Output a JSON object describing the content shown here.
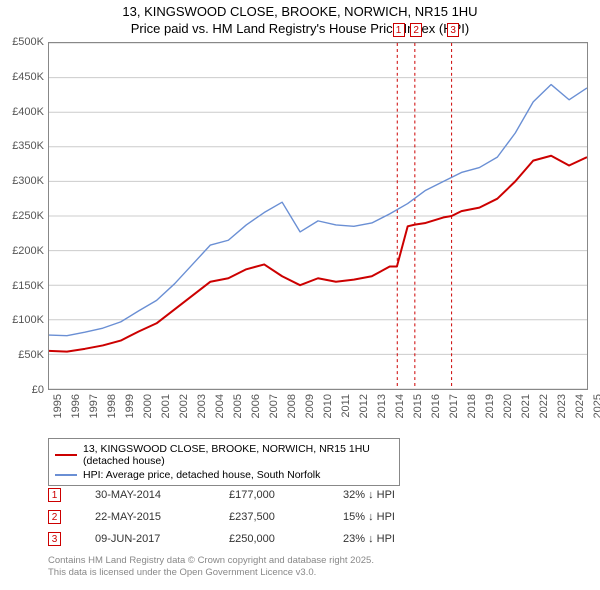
{
  "title_line1": "13, KINGSWOOD CLOSE, BROOKE, NORWICH, NR15 1HU",
  "title_line2": "Price paid vs. HM Land Registry's House Price Index (HPI)",
  "chart": {
    "type": "line",
    "ylim": [
      0,
      500000
    ],
    "ytick_step": 50000,
    "y_ticks": [
      "£0",
      "£50K",
      "£100K",
      "£150K",
      "£200K",
      "£250K",
      "£300K",
      "£350K",
      "£400K",
      "£450K",
      "£500K"
    ],
    "x_years": [
      1995,
      1996,
      1997,
      1998,
      1999,
      2000,
      2001,
      2002,
      2003,
      2004,
      2005,
      2006,
      2007,
      2008,
      2009,
      2010,
      2011,
      2012,
      2013,
      2014,
      2015,
      2016,
      2017,
      2018,
      2019,
      2020,
      2021,
      2022,
      2023,
      2024,
      2025
    ],
    "grid_color": "#cccccc",
    "background_color": "#ffffff",
    "series": [
      {
        "name": "price_paid",
        "label": "13, KINGSWOOD CLOSE, BROOKE, NORWICH, NR15 1HU (detached house)",
        "color": "#cc0000",
        "line_width": 2,
        "data": [
          [
            1995,
            55000
          ],
          [
            1996,
            54000
          ],
          [
            1997,
            58000
          ],
          [
            1998,
            63000
          ],
          [
            1999,
            70000
          ],
          [
            2000,
            83000
          ],
          [
            2001,
            95000
          ],
          [
            2002,
            115000
          ],
          [
            2003,
            135000
          ],
          [
            2004,
            155000
          ],
          [
            2005,
            160000
          ],
          [
            2006,
            173000
          ],
          [
            2007,
            180000
          ],
          [
            2008,
            163000
          ],
          [
            2009,
            150000
          ],
          [
            2010,
            160000
          ],
          [
            2011,
            155000
          ],
          [
            2012,
            158000
          ],
          [
            2013,
            163000
          ],
          [
            2014,
            177000
          ],
          [
            2014.4,
            177000
          ],
          [
            2015,
            235000
          ],
          [
            2015.4,
            237500
          ],
          [
            2016,
            240000
          ],
          [
            2017,
            248000
          ],
          [
            2017.45,
            250000
          ],
          [
            2018,
            257000
          ],
          [
            2019,
            262000
          ],
          [
            2020,
            275000
          ],
          [
            2021,
            300000
          ],
          [
            2022,
            330000
          ],
          [
            2023,
            337000
          ],
          [
            2024,
            323000
          ],
          [
            2025,
            335000
          ]
        ]
      },
      {
        "name": "hpi",
        "label": "HPI: Average price, detached house, South Norfolk",
        "color": "#6a8fd4",
        "line_width": 1.4,
        "data": [
          [
            1995,
            78000
          ],
          [
            1996,
            77000
          ],
          [
            1997,
            82000
          ],
          [
            1998,
            88000
          ],
          [
            1999,
            97000
          ],
          [
            2000,
            113000
          ],
          [
            2001,
            128000
          ],
          [
            2002,
            152000
          ],
          [
            2003,
            180000
          ],
          [
            2004,
            208000
          ],
          [
            2005,
            215000
          ],
          [
            2006,
            237000
          ],
          [
            2007,
            255000
          ],
          [
            2008,
            270000
          ],
          [
            2009,
            227000
          ],
          [
            2010,
            243000
          ],
          [
            2011,
            237000
          ],
          [
            2012,
            235000
          ],
          [
            2013,
            240000
          ],
          [
            2014,
            253000
          ],
          [
            2015,
            268000
          ],
          [
            2016,
            287000
          ],
          [
            2017,
            300000
          ],
          [
            2018,
            313000
          ],
          [
            2019,
            320000
          ],
          [
            2020,
            335000
          ],
          [
            2021,
            370000
          ],
          [
            2022,
            415000
          ],
          [
            2023,
            440000
          ],
          [
            2024,
            418000
          ],
          [
            2025,
            435000
          ]
        ]
      }
    ],
    "markers": [
      {
        "n": "1",
        "year": 2014.42
      },
      {
        "n": "2",
        "year": 2015.4
      },
      {
        "n": "3",
        "year": 2017.45
      }
    ],
    "marker_line_color": "#cc0000"
  },
  "legend": {
    "items": [
      {
        "color": "#cc0000",
        "width": 2,
        "label": "13, KINGSWOOD CLOSE, BROOKE, NORWICH, NR15 1HU (detached house)"
      },
      {
        "color": "#6a8fd4",
        "width": 1.4,
        "label": "HPI: Average price, detached house, South Norfolk"
      }
    ]
  },
  "sales": [
    {
      "n": "1",
      "date": "30-MAY-2014",
      "price": "£177,000",
      "pct": "32% ↓ HPI"
    },
    {
      "n": "2",
      "date": "22-MAY-2015",
      "price": "£237,500",
      "pct": "15% ↓ HPI"
    },
    {
      "n": "3",
      "date": "09-JUN-2017",
      "price": "£250,000",
      "pct": "23% ↓ HPI"
    }
  ],
  "footer_line1": "Contains HM Land Registry data © Crown copyright and database right 2025.",
  "footer_line2": "This data is licensed under the Open Government Licence v3.0."
}
